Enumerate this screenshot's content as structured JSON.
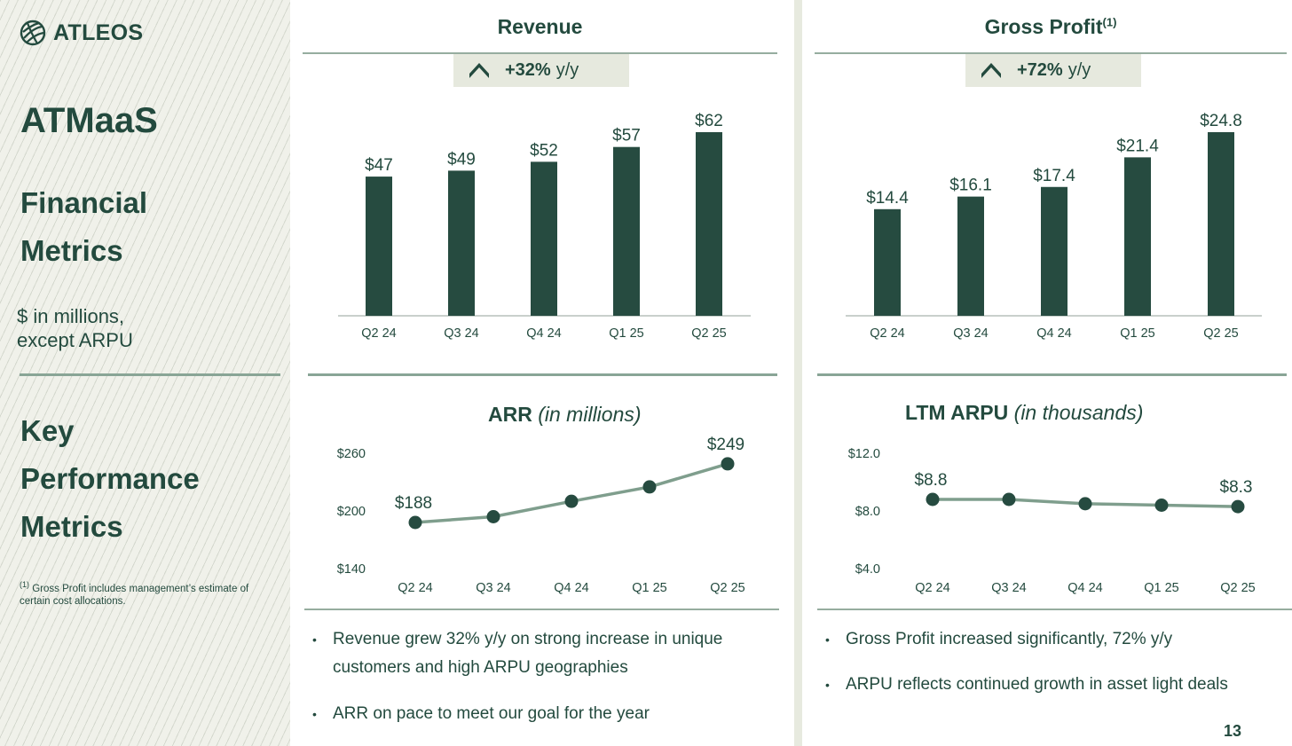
{
  "brand": {
    "name": "ATLEOS"
  },
  "sidebar": {
    "title": "ATMaaS",
    "section1_line1": "Financial",
    "section1_line2": "Metrics",
    "units_line1": "$ in millions,",
    "units_line2": "except ARPU",
    "section2_line1": "Key",
    "section2_line2": "Performance",
    "section2_line3": "Metrics",
    "footnote_marker": "(1)",
    "footnote_text": "Gross Profit includes management’s estimate of certain cost allocations."
  },
  "revenue_panel": {
    "title": "Revenue",
    "badge_value": "+32%",
    "badge_unit": "y/y"
  },
  "gross_profit_panel": {
    "title": "Gross Profit",
    "title_sup": "(1)",
    "badge_value": "+72%",
    "badge_unit": "y/y"
  },
  "arr_panel": {
    "title": "ARR",
    "title_note": "(in millions)"
  },
  "arpu_panel": {
    "title": "LTM ARPU",
    "title_note": "(in thousands)"
  },
  "commentary_left": [
    "Revenue grew 32% y/y on strong increase in unique customers and high ARPU geographies",
    "ARR on pace to meet our goal for the year"
  ],
  "commentary_right": [
    "Gross Profit increased significantly, 72% y/y",
    "ARPU reflects continued growth in asset light deals"
  ],
  "page_number": "13",
  "colors": {
    "dark_green": "#234a3e",
    "line_green": "#7f9e8d",
    "badge_bg": "#e6e9de"
  },
  "chart_data": [
    {
      "type": "bar",
      "title": "Revenue",
      "categories": [
        "Q2 24",
        "Q3 24",
        "Q4 24",
        "Q1 25",
        "Q2 25"
      ],
      "values": [
        47,
        49,
        52,
        57,
        62
      ],
      "data_labels": [
        "$47",
        "$49",
        "$52",
        "$57",
        "$62"
      ],
      "ylim": [
        0,
        62
      ]
    },
    {
      "type": "bar",
      "title": "Gross Profit",
      "categories": [
        "Q2 24",
        "Q3 24",
        "Q4 24",
        "Q1 25",
        "Q2 25"
      ],
      "values": [
        14.4,
        16.1,
        17.4,
        21.4,
        24.8
      ],
      "data_labels": [
        "$14.4",
        "$16.1",
        "$17.4",
        "$21.4",
        "$24.8"
      ],
      "ylim": [
        0,
        24.8
      ]
    },
    {
      "type": "line",
      "title": "ARR",
      "categories": [
        "Q2 24",
        "Q3 24",
        "Q4 24",
        "Q1 25",
        "Q2 25"
      ],
      "values": [
        188,
        194,
        210,
        225,
        249
      ],
      "point_labels": [
        "$188",
        "",
        "",
        "",
        "$249"
      ],
      "yticks": [
        "$260",
        "$200",
        "$140"
      ],
      "ylim": [
        140,
        260
      ]
    },
    {
      "type": "line",
      "title": "LTM ARPU",
      "categories": [
        "Q2 24",
        "Q3 24",
        "Q4 24",
        "Q1 25",
        "Q2 25"
      ],
      "values": [
        8.8,
        8.8,
        8.5,
        8.4,
        8.3
      ],
      "point_labels": [
        "$8.8",
        "",
        "",
        "",
        "$8.3"
      ],
      "yticks": [
        "$12.0",
        "$8.0",
        "$4.0"
      ],
      "ylim": [
        4,
        12
      ]
    }
  ]
}
